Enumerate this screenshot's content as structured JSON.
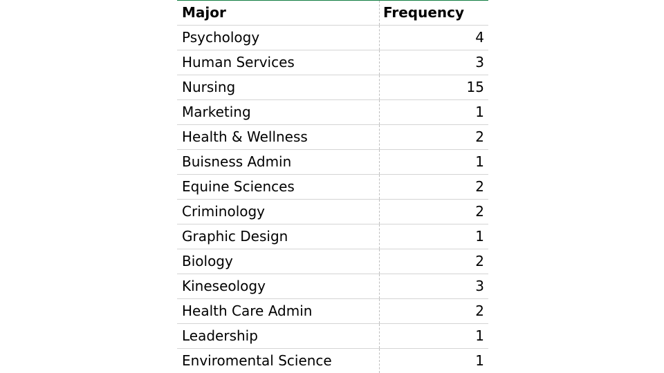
{
  "chart_data": {
    "type": "table",
    "columns": [
      "Major",
      "Frequency"
    ],
    "rows": [
      [
        "Psychology",
        4
      ],
      [
        "Human Services",
        3
      ],
      [
        "Nursing",
        15
      ],
      [
        "Marketing",
        1
      ],
      [
        "Health & Wellness",
        2
      ],
      [
        "Buisness Admin",
        1
      ],
      [
        "Equine Sciences",
        2
      ],
      [
        "Criminology",
        2
      ],
      [
        "Graphic Design",
        1
      ],
      [
        "Biology",
        2
      ],
      [
        "Kineseology",
        3
      ],
      [
        "Health Care Admin",
        2
      ],
      [
        "Leadership",
        1
      ],
      [
        "Enviromental Science",
        1
      ]
    ]
  }
}
